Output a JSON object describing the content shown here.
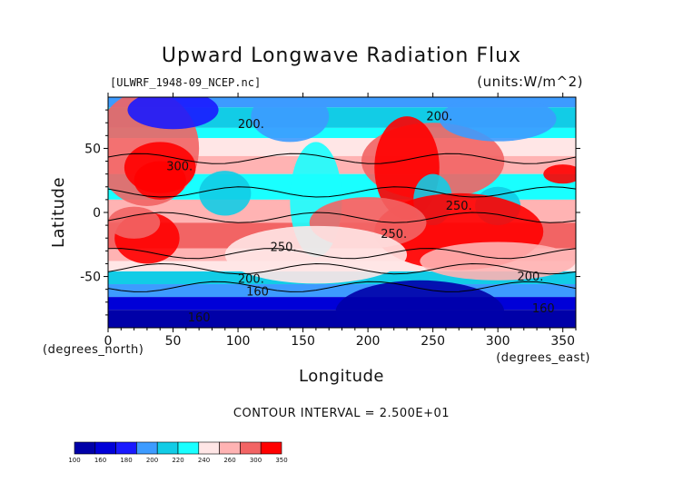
{
  "chart_data": {
    "type": "heatmap",
    "title": "Upward Longwave Radiation Flux",
    "subtitle": "[ULWRF_1948-09_NCEP.nc]",
    "units_label": "(units:W/m^2)",
    "xlabel": "Longitude",
    "ylabel": "Latitude",
    "x_unit_label": "(degrees_east)",
    "y_unit_label": "(degrees_north)",
    "xlim": [
      0,
      360
    ],
    "ylim": [
      -90,
      90
    ],
    "x_ticks": [
      0,
      50,
      100,
      150,
      200,
      250,
      300,
      350
    ],
    "y_ticks": [
      -50,
      0,
      50
    ],
    "contour_interval_text": "CONTOUR INTERVAL = 2.500E+01",
    "colorbar": {
      "levels": [
        100,
        160,
        180,
        200,
        220,
        240,
        260,
        300,
        350
      ],
      "colors": [
        "#0000a8",
        "#0000d8",
        "#1a1aff",
        "#3d9bff",
        "#12cce6",
        "#19ffff",
        "#ffe6e6",
        "#ffb3b3",
        "#f26464",
        "#ff0000"
      ]
    },
    "contour_labels": [
      {
        "text": "200.",
        "lon": 110,
        "lat": 66
      },
      {
        "text": "200.",
        "lon": 255,
        "lat": 72
      },
      {
        "text": "300.",
        "lon": 55,
        "lat": 33
      },
      {
        "text": "250.",
        "lon": 270,
        "lat": 2
      },
      {
        "text": "250.",
        "lon": 220,
        "lat": -20
      },
      {
        "text": "250.",
        "lon": 135,
        "lat": -30
      },
      {
        "text": "200.",
        "lon": 110,
        "lat": -55
      },
      {
        "text": "200.",
        "lon": 325,
        "lat": -53
      },
      {
        "text": "160",
        "lon": 115,
        "lat": -65
      },
      {
        "text": "160",
        "lon": 70,
        "lat": -85
      },
      {
        "text": "160",
        "lon": 335,
        "lat": -78
      }
    ]
  }
}
